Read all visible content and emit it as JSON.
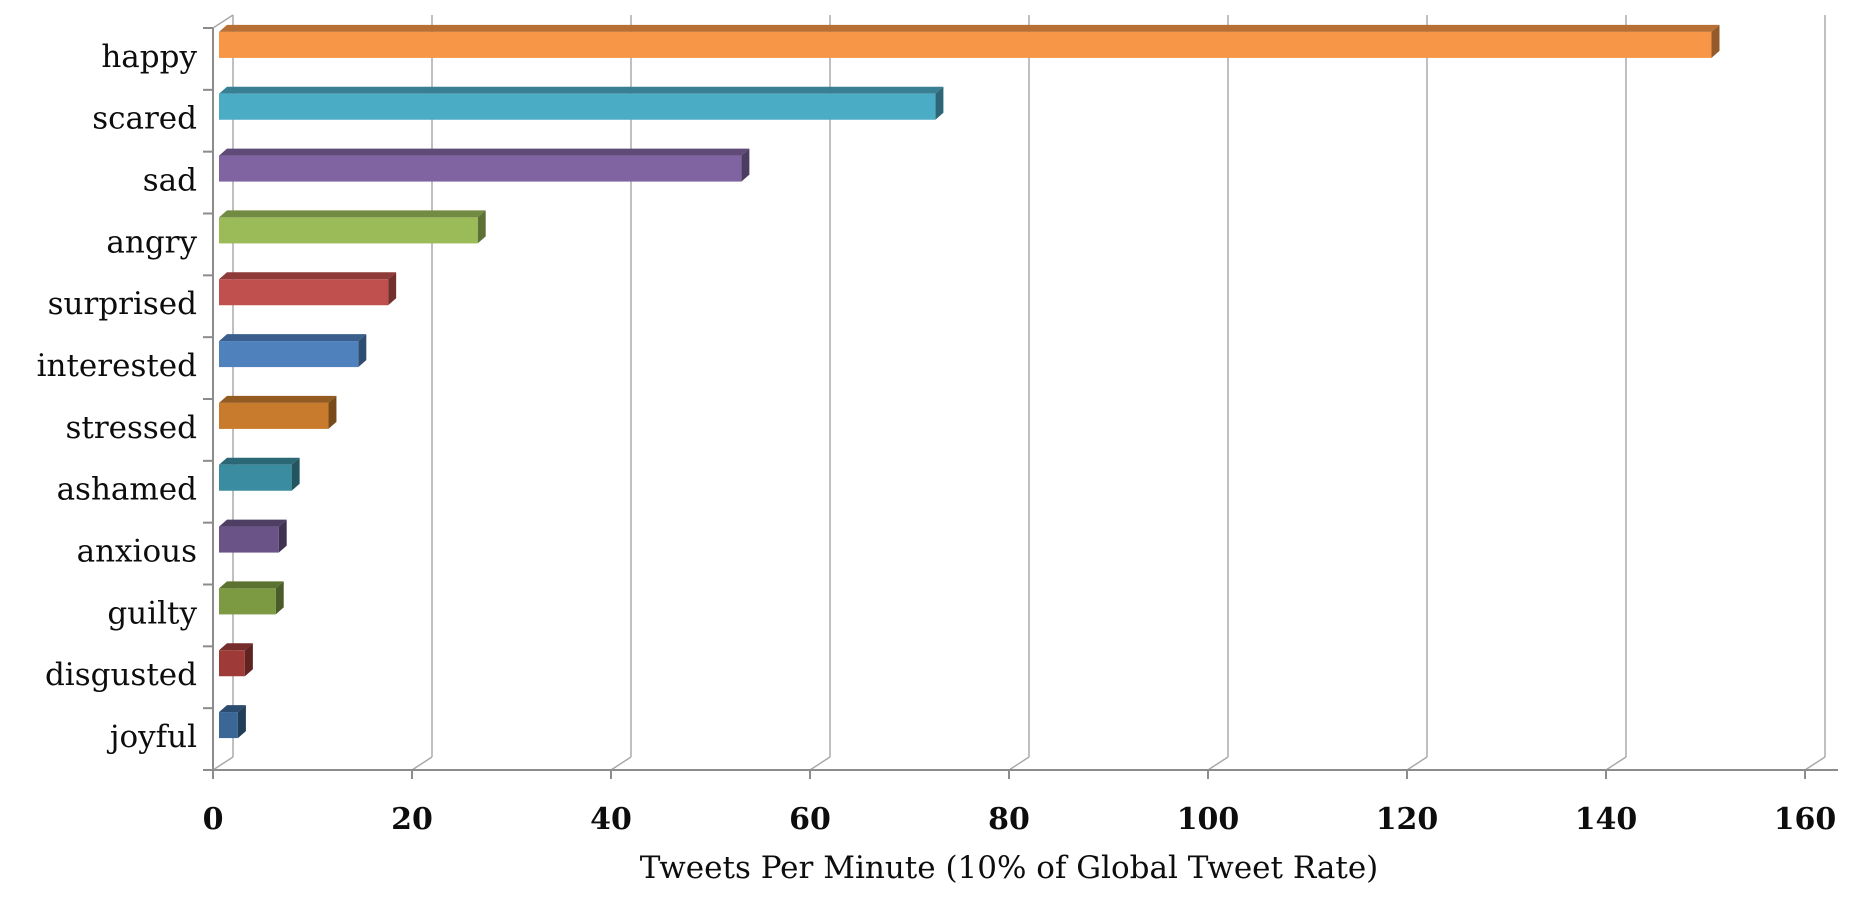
{
  "chart_data": {
    "type": "bar",
    "orientation": "horizontal",
    "style": "3d",
    "title": "",
    "xlabel": "Tweets Per Minute (10% of Global Tweet Rate)",
    "ylabel": "",
    "categories": [
      "happy",
      "scared",
      "sad",
      "angry",
      "surprised",
      "interested",
      "stressed",
      "ashamed",
      "anxious",
      "guilty",
      "disgusted",
      "joyful"
    ],
    "values": [
      150,
      72,
      52.5,
      26,
      17,
      14,
      11,
      7.3,
      6,
      5.7,
      2.6,
      1.9
    ],
    "bar_colors": [
      "#F79646",
      "#4BACC6",
      "#8064A2",
      "#9BBB59",
      "#C0504D",
      "#4F81BD",
      "#C87B2C",
      "#3A8DA0",
      "#6A5487",
      "#7C9A42",
      "#9E3B39",
      "#3A6795"
    ],
    "xlim": [
      0,
      160
    ],
    "x_ticks": [
      0,
      20,
      40,
      60,
      80,
      100,
      120,
      140,
      160
    ],
    "grid": true,
    "legend": false,
    "background_color": "#FFFFFF",
    "gridline_color": "#A6A6A6",
    "axis_color": "#8C8C8C",
    "text_color": "#0D0D0D"
  }
}
